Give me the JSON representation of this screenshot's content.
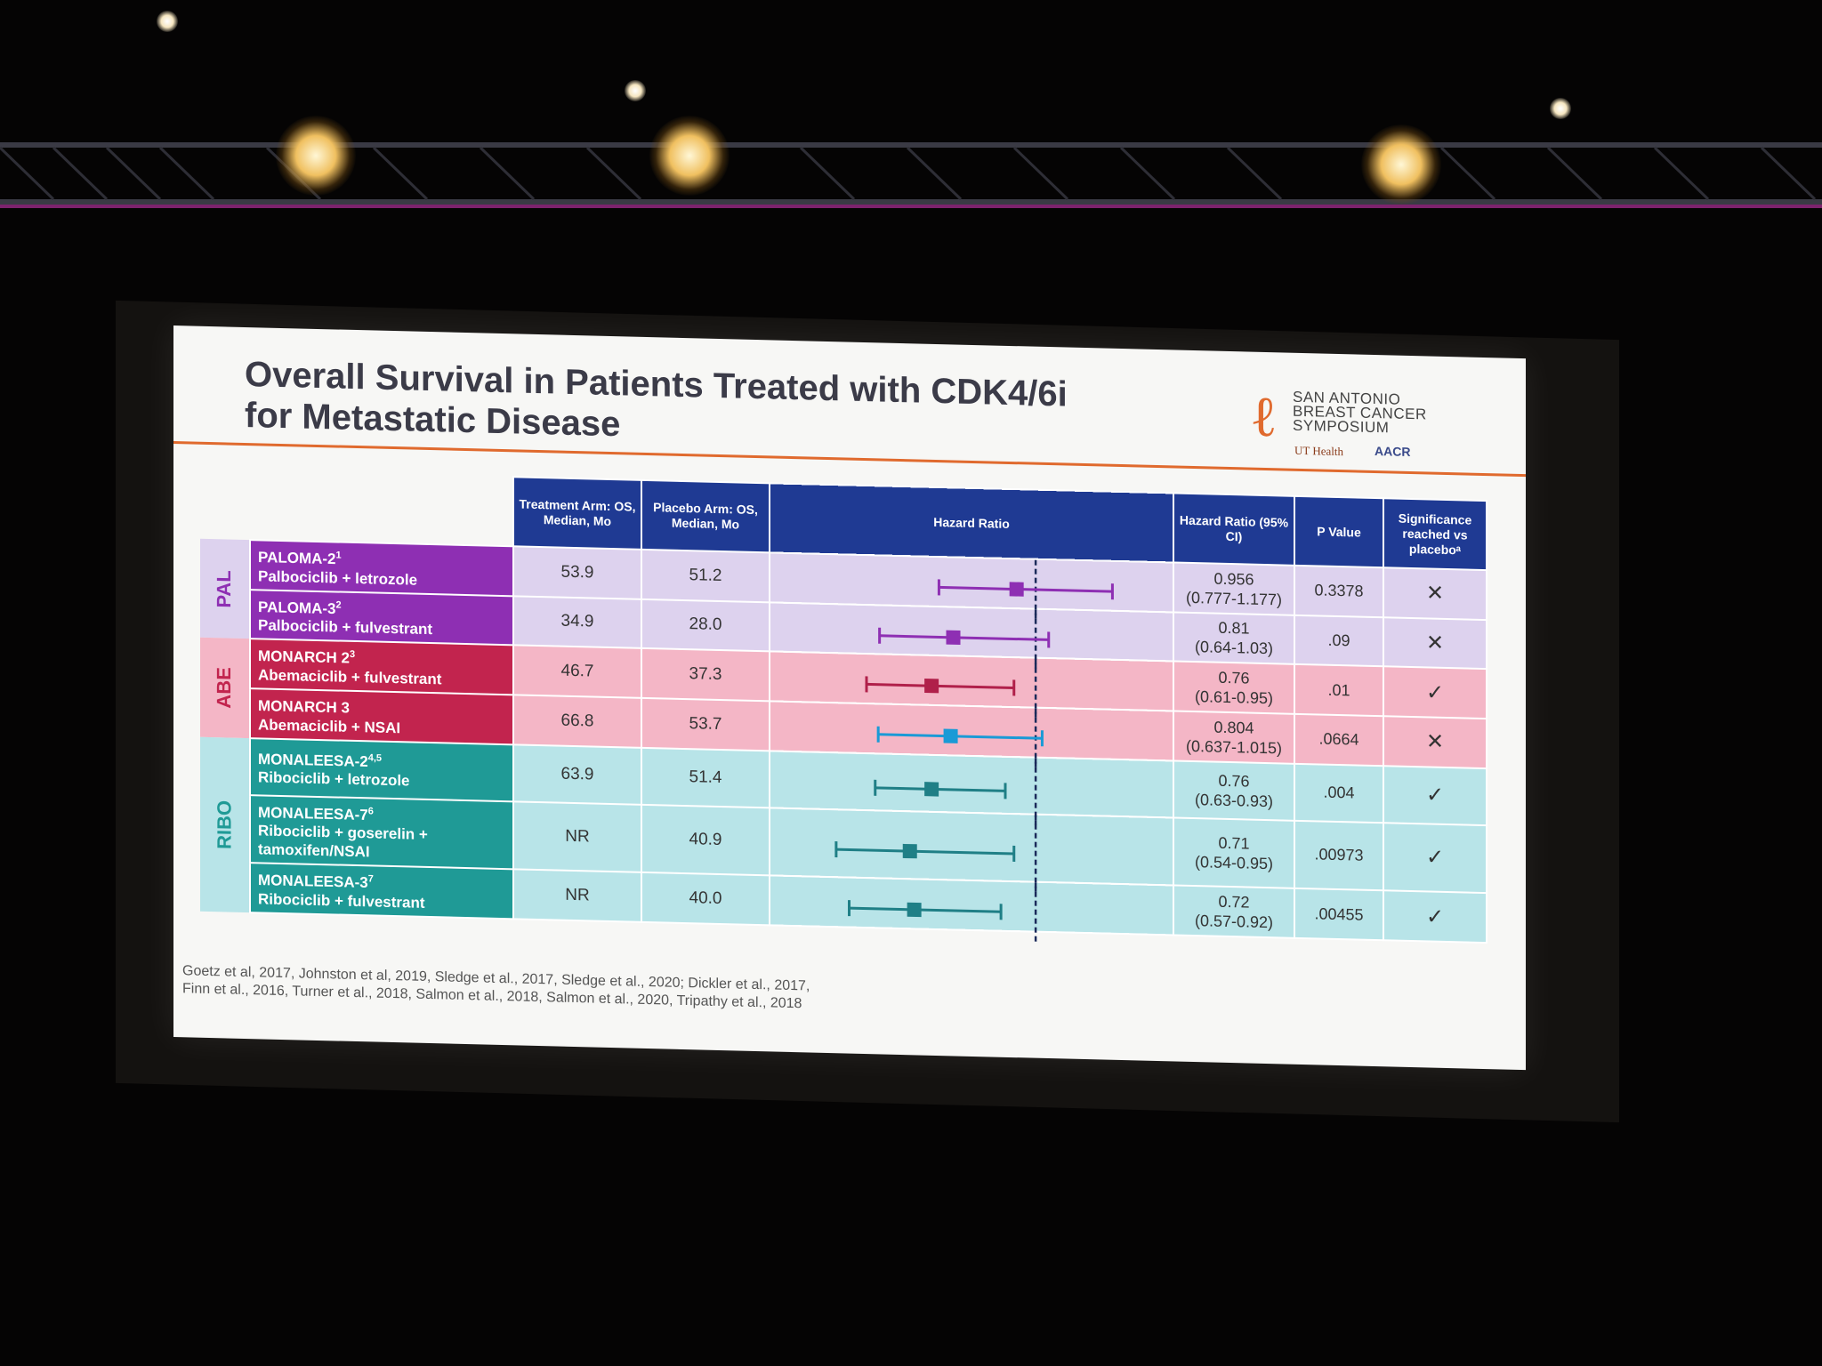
{
  "slide": {
    "title_line1": "Overall Survival in Patients Treated with CDK4/6i",
    "title_line2": "for Metastatic Disease",
    "logo": {
      "line1": "SAN ANTONIO",
      "line2": "BREAST CANCER",
      "line3": "SYMPOSIUM",
      "sub1": "UT Health",
      "sub2": "AACR"
    },
    "headers": {
      "treatment": "Treatment Arm: OS, Median, Mo",
      "placebo": "Placebo Arm: OS, Median, Mo",
      "hazard_ratio": "Hazard Ratio",
      "hr_ci": "Hazard Ratio (95% CI)",
      "p_value": "P Value",
      "significance": "Significance reached vs placeboᵃ"
    },
    "groups": {
      "pal": "PAL",
      "abe": "ABE",
      "ribo": "RIBO"
    },
    "rows": [
      {
        "trial": "PALOMA-2",
        "sup": "1",
        "regimen": "Palbociclib + letrozole",
        "treatment": "53.9",
        "placebo": "51.2",
        "hr": "0.956",
        "ci": "(0.777-1.177)",
        "p": "0.3378",
        "sig": "✕"
      },
      {
        "trial": "PALOMA-3",
        "sup": "2",
        "regimen": "Palbociclib + fulvestrant",
        "treatment": "34.9",
        "placebo": "28.0",
        "hr": "0.81",
        "ci": "(0.64-1.03)",
        "p": ".09",
        "sig": "✕"
      },
      {
        "trial": "MONARCH 2",
        "sup": "3",
        "regimen": "Abemaciclib + fulvestrant",
        "treatment": "46.7",
        "placebo": "37.3",
        "hr": "0.76",
        "ci": "(0.61-0.95)",
        "p": ".01",
        "sig": "✓"
      },
      {
        "trial": "MONARCH 3",
        "sup": "",
        "regimen": "Abemaciclib + NSAI",
        "treatment": "66.8",
        "placebo": "53.7",
        "hr": "0.804",
        "ci": "(0.637-1.015)",
        "p": ".0664",
        "sig": "✕"
      },
      {
        "trial": "MONALEESA-2",
        "sup": "4,5",
        "regimen": "Ribociclib + letrozole",
        "treatment": "63.9",
        "placebo": "51.4",
        "hr": "0.76",
        "ci": "(0.63-0.93)",
        "p": ".004",
        "sig": "✓"
      },
      {
        "trial": "MONALEESA-7",
        "sup": "6",
        "regimen": "Ribociclib + goserelin + tamoxifen/NSAI",
        "treatment": "NR",
        "placebo": "40.9",
        "hr": "0.71",
        "ci": "(0.54-0.95)",
        "p": ".00973",
        "sig": "✓"
      },
      {
        "trial": "MONALEESA-3",
        "sup": "7",
        "regimen": "Ribociclib + fulvestrant",
        "treatment": "NR",
        "placebo": "40.0",
        "hr": "0.72",
        "ci": "(0.57-0.92)",
        "p": ".00455",
        "sig": "✓"
      }
    ],
    "references_line1": "Goetz et al, 2017, Johnston et al, 2019, Sledge et al., 2017, Sledge et al., 2020; Dickler et al., 2017,",
    "references_line2": "Finn et al., 2016, Turner et al., 2018, Salmon et al., 2018, Salmon et al., 2020, Tripathy et al., 2018"
  },
  "chart_data": {
    "type": "forest",
    "reference_line": 1.0,
    "xlim": [
      0.45,
      1.25
    ],
    "series": [
      {
        "name": "PALOMA-2",
        "hr": 0.956,
        "lo": 0.777,
        "hi": 1.177,
        "color": "#8e2fb3"
      },
      {
        "name": "PALOMA-3",
        "hr": 0.81,
        "lo": 0.64,
        "hi": 1.03,
        "color": "#8e2fb3"
      },
      {
        "name": "MONARCH 2",
        "hr": 0.76,
        "lo": 0.61,
        "hi": 0.95,
        "color": "#b0204a"
      },
      {
        "name": "MONARCH 3",
        "hr": 0.804,
        "lo": 0.637,
        "hi": 1.015,
        "color": "#1a9ad6"
      },
      {
        "name": "MONALEESA-2",
        "hr": 0.76,
        "lo": 0.63,
        "hi": 0.93,
        "color": "#1f7f86"
      },
      {
        "name": "MONALEESA-7",
        "hr": 0.71,
        "lo": 0.54,
        "hi": 0.95,
        "color": "#1f7f86"
      },
      {
        "name": "MONALEESA-3",
        "hr": 0.72,
        "lo": 0.57,
        "hi": 0.92,
        "color": "#1f7f86"
      }
    ]
  },
  "colors": {
    "header": "#1f3a93",
    "pal": "#8e2fb3",
    "abe": "#c2244e",
    "ribo": "#1f9a96",
    "accent_rule": "#e06a2e"
  }
}
